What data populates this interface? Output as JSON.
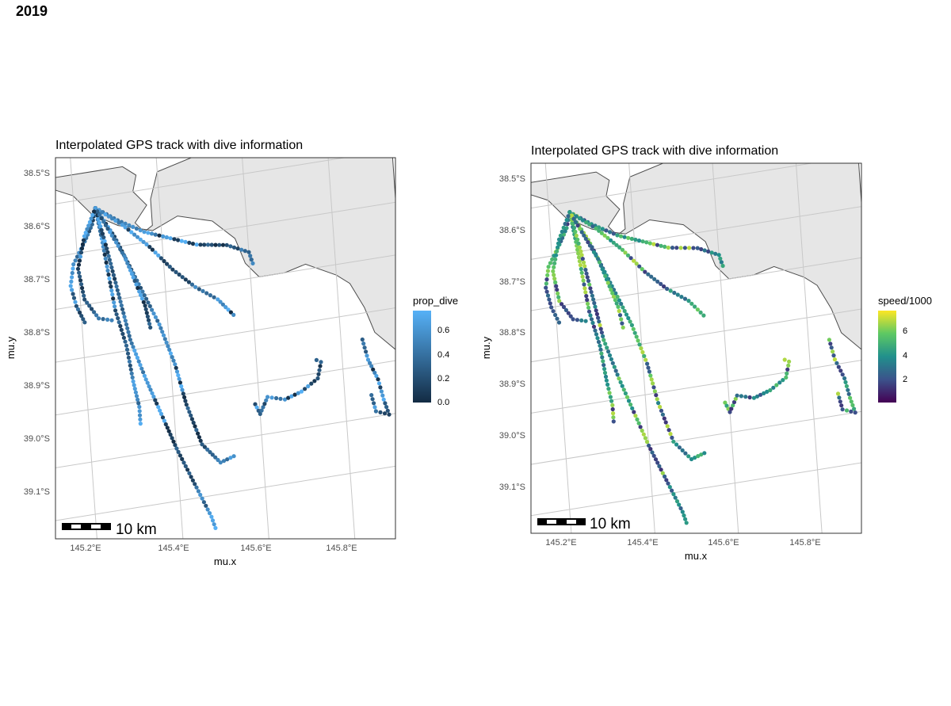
{
  "figure_title": "2019",
  "colors": {
    "land": "#e6e6e6",
    "land_outline": "#4d4d4d",
    "graticule": "#c8c8c8",
    "panel_border": "#333333",
    "prop_dive_low": "#132b43",
    "prop_dive_high": "#56b1f7",
    "viridis": [
      "#440154",
      "#3b528b",
      "#21908c",
      "#5dc863",
      "#fde725"
    ]
  },
  "panels": [
    {
      "title": "Interpolated GPS track with dive information",
      "xlabel": "mu.x",
      "ylabel": "mu.y",
      "x_ticks": [
        "145.2°E",
        "145.4°E",
        "145.6°E",
        "145.8°E"
      ],
      "y_ticks": [
        "38.5°S",
        "38.6°S",
        "38.7°S",
        "38.8°S",
        "38.9°S",
        "39.0°S",
        "39.1°S"
      ],
      "legend_title": "prop_dive",
      "legend_ticks": [
        "0.6",
        "0.4",
        "0.2",
        "0.0"
      ],
      "scale_bar_label": "10 km",
      "color_variable": "prop_dive"
    },
    {
      "title": "Interpolated GPS track with dive information",
      "xlabel": "mu.x",
      "ylabel": "mu.y",
      "x_ticks": [
        "145.2°E",
        "145.4°E",
        "145.6°E",
        "145.8°E"
      ],
      "y_ticks": [
        "38.5°S",
        "38.6°S",
        "38.7°S",
        "38.8°S",
        "38.9°S",
        "39.0°S",
        "39.1°S"
      ],
      "legend_title": "speed/1000",
      "legend_ticks": [
        "6",
        "4",
        "2"
      ],
      "scale_bar_label": "10 km",
      "color_variable": "speed/1000"
    }
  ],
  "chart_data": [
    {
      "type": "scatter",
      "title": "Interpolated GPS track with dive information",
      "xlabel": "mu.x",
      "ylabel": "mu.y",
      "xlim": [
        145.13,
        145.93
      ],
      "ylim": [
        -39.19,
        -38.46
      ],
      "color_scale": {
        "name": "prop_dive",
        "range": [
          0.0,
          0.75
        ]
      },
      "series": [
        {
          "values": [
            [
              145.25,
              -38.52
            ],
            [
              145.24,
              -38.55
            ],
            [
              145.22,
              -38.58
            ],
            [
              145.19,
              -38.62
            ],
            [
              145.18,
              -38.66
            ],
            [
              145.19,
              -38.7
            ],
            [
              145.21,
              -38.74
            ]
          ]
        },
        {
          "values": [
            [
              145.25,
              -38.52
            ],
            [
              145.26,
              -38.58
            ],
            [
              145.27,
              -38.65
            ],
            [
              145.28,
              -38.72
            ],
            [
              145.3,
              -38.79
            ],
            [
              145.31,
              -38.86
            ],
            [
              145.32,
              -38.91
            ],
            [
              145.32,
              -38.95
            ]
          ]
        },
        {
          "values": [
            [
              145.25,
              -38.52
            ],
            [
              145.29,
              -38.58
            ],
            [
              145.32,
              -38.64
            ],
            [
              145.35,
              -38.7
            ],
            [
              145.38,
              -38.76
            ],
            [
              145.41,
              -38.84
            ],
            [
              145.43,
              -38.92
            ],
            [
              145.46,
              -39.0
            ],
            [
              145.5,
              -39.04
            ],
            [
              145.54,
              -39.03
            ]
          ]
        },
        {
          "values": [
            [
              145.25,
              -38.52
            ],
            [
              145.3,
              -38.55
            ],
            [
              145.36,
              -38.58
            ],
            [
              145.42,
              -38.6
            ],
            [
              145.48,
              -38.62
            ],
            [
              145.55,
              -38.63
            ],
            [
              145.6,
              -38.65
            ],
            [
              145.61,
              -38.68
            ]
          ]
        },
        {
          "values": [
            [
              145.25,
              -38.52
            ],
            [
              145.31,
              -38.56
            ],
            [
              145.37,
              -38.61
            ],
            [
              145.42,
              -38.66
            ],
            [
              145.47,
              -38.7
            ],
            [
              145.52,
              -38.73
            ],
            [
              145.56,
              -38.77
            ]
          ]
        },
        {
          "values": [
            [
              145.25,
              -38.52
            ],
            [
              145.27,
              -38.6
            ],
            [
              145.29,
              -38.69
            ],
            [
              145.31,
              -38.78
            ],
            [
              145.34,
              -38.86
            ],
            [
              145.37,
              -38.93
            ],
            [
              145.4,
              -39.0
            ],
            [
              145.44,
              -39.08
            ],
            [
              145.47,
              -39.14
            ],
            [
              145.48,
              -39.17
            ]
          ]
        },
        {
          "values": [
            [
              145.25,
              -38.52
            ],
            [
              145.28,
              -38.57
            ],
            [
              145.31,
              -38.62
            ],
            [
              145.33,
              -38.67
            ],
            [
              145.35,
              -38.72
            ],
            [
              145.36,
              -38.77
            ]
          ]
        },
        {
          "values": [
            [
              145.25,
              -38.52
            ],
            [
              145.22,
              -38.57
            ],
            [
              145.2,
              -38.63
            ],
            [
              145.21,
              -38.69
            ],
            [
              145.24,
              -38.73
            ],
            [
              145.28,
              -38.74
            ]
          ]
        },
        {
          "values": [
            [
              145.59,
              -38.94
            ],
            [
              145.6,
              -38.96
            ],
            [
              145.62,
              -38.93
            ],
            [
              145.66,
              -38.94
            ],
            [
              145.7,
              -38.93
            ],
            [
              145.74,
              -38.91
            ],
            [
              145.75,
              -38.88
            ],
            [
              145.73,
              -38.87
            ]
          ]
        },
        {
          "values": [
            [
              145.85,
              -38.85
            ],
            [
              145.86,
              -38.89
            ],
            [
              145.88,
              -38.93
            ],
            [
              145.89,
              -38.97
            ],
            [
              145.9,
              -39.0
            ],
            [
              145.87,
              -38.99
            ],
            [
              145.86,
              -38.95
            ]
          ]
        }
      ]
    },
    {
      "type": "scatter",
      "title": "Interpolated GPS track with dive information",
      "xlabel": "mu.x",
      "ylabel": "mu.y",
      "xlim": [
        145.13,
        145.93
      ],
      "ylim": [
        -39.19,
        -38.46
      ],
      "color_scale": {
        "name": "speed/1000",
        "range": [
          0.2,
          7.5
        ]
      },
      "series": [
        {
          "values": [
            [
              145.25,
              -38.52
            ],
            [
              145.24,
              -38.55
            ],
            [
              145.22,
              -38.58
            ],
            [
              145.19,
              -38.62
            ],
            [
              145.18,
              -38.66
            ],
            [
              145.19,
              -38.7
            ],
            [
              145.21,
              -38.74
            ]
          ]
        },
        {
          "values": [
            [
              145.25,
              -38.52
            ],
            [
              145.26,
              -38.58
            ],
            [
              145.27,
              -38.65
            ],
            [
              145.28,
              -38.72
            ],
            [
              145.3,
              -38.79
            ],
            [
              145.31,
              -38.86
            ],
            [
              145.32,
              -38.91
            ],
            [
              145.32,
              -38.95
            ]
          ]
        },
        {
          "values": [
            [
              145.25,
              -38.52
            ],
            [
              145.29,
              -38.58
            ],
            [
              145.32,
              -38.64
            ],
            [
              145.35,
              -38.7
            ],
            [
              145.38,
              -38.76
            ],
            [
              145.41,
              -38.84
            ],
            [
              145.43,
              -38.92
            ],
            [
              145.46,
              -39.0
            ],
            [
              145.5,
              -39.04
            ],
            [
              145.54,
              -39.03
            ]
          ]
        },
        {
          "values": [
            [
              145.25,
              -38.52
            ],
            [
              145.3,
              -38.55
            ],
            [
              145.36,
              -38.58
            ],
            [
              145.42,
              -38.6
            ],
            [
              145.48,
              -38.62
            ],
            [
              145.55,
              -38.63
            ],
            [
              145.6,
              -38.65
            ],
            [
              145.61,
              -38.68
            ]
          ]
        },
        {
          "values": [
            [
              145.25,
              -38.52
            ],
            [
              145.31,
              -38.56
            ],
            [
              145.37,
              -38.61
            ],
            [
              145.42,
              -38.66
            ],
            [
              145.47,
              -38.7
            ],
            [
              145.52,
              -38.73
            ],
            [
              145.56,
              -38.77
            ]
          ]
        },
        {
          "values": [
            [
              145.25,
              -38.52
            ],
            [
              145.27,
              -38.6
            ],
            [
              145.29,
              -38.69
            ],
            [
              145.31,
              -38.78
            ],
            [
              145.34,
              -38.86
            ],
            [
              145.37,
              -38.93
            ],
            [
              145.4,
              -39.0
            ],
            [
              145.44,
              -39.08
            ],
            [
              145.47,
              -39.14
            ],
            [
              145.48,
              -39.17
            ]
          ]
        },
        {
          "values": [
            [
              145.25,
              -38.52
            ],
            [
              145.28,
              -38.57
            ],
            [
              145.31,
              -38.62
            ],
            [
              145.33,
              -38.67
            ],
            [
              145.35,
              -38.72
            ],
            [
              145.36,
              -38.77
            ]
          ]
        },
        {
          "values": [
            [
              145.25,
              -38.52
            ],
            [
              145.22,
              -38.57
            ],
            [
              145.2,
              -38.63
            ],
            [
              145.21,
              -38.69
            ],
            [
              145.24,
              -38.73
            ],
            [
              145.28,
              -38.74
            ]
          ]
        },
        {
          "values": [
            [
              145.59,
              -38.94
            ],
            [
              145.6,
              -38.96
            ],
            [
              145.62,
              -38.93
            ],
            [
              145.66,
              -38.94
            ],
            [
              145.7,
              -38.93
            ],
            [
              145.74,
              -38.91
            ],
            [
              145.75,
              -38.88
            ],
            [
              145.73,
              -38.87
            ]
          ]
        },
        {
          "values": [
            [
              145.85,
              -38.85
            ],
            [
              145.86,
              -38.89
            ],
            [
              145.88,
              -38.93
            ],
            [
              145.89,
              -38.97
            ],
            [
              145.9,
              -39.0
            ],
            [
              145.87,
              -38.99
            ],
            [
              145.86,
              -38.95
            ]
          ]
        }
      ]
    }
  ]
}
